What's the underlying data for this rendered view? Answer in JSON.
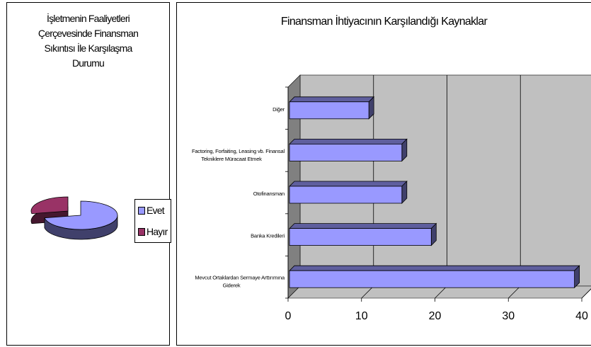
{
  "pie_chart": {
    "title_lines": [
      "İşletmenin Faaliyetleri",
      "Çerçevesinde Finansman",
      "Sıkıntısı İle Karşılaşma",
      "Durumu"
    ],
    "legend": [
      {
        "label": "Evet",
        "color": "#9999ff"
      },
      {
        "label": "Hayır",
        "color": "#993366"
      }
    ]
  },
  "chart_data": [
    {
      "type": "pie",
      "title": "İşletmenin Faaliyetleri Çerçevesinde Finansman Sıkıntısı İle Karşılaşma Durumu",
      "categories": [
        "Evet",
        "Hayır"
      ],
      "values": [
        72,
        28
      ],
      "3d": true,
      "legend_position": "right",
      "colors": {
        "Evet": "#9999ff",
        "Hayır": "#993366"
      }
    },
    {
      "type": "bar",
      "orientation": "horizontal",
      "3d": true,
      "title": "Finansman İhtiyacının Karşılandığı Kaynaklar",
      "categories": [
        "Mevcut Ortaklardan Sermaye Arttırımına Giderek",
        "Banka Kredileri",
        "Otofinansman",
        "Factoring, Forfaiting, Leasing vb. Finansal Tekniklere Müracaat Etmek",
        "Diğer"
      ],
      "category_label_lines": [
        [
          "Mevcut Ortaklardan Sermaye Arttırımına",
          "Giderek"
        ],
        [
          "Banka Kredileri"
        ],
        [
          "Otofinansman"
        ],
        [
          "Factoring, Forfaiting, Leasing vb. Finansal",
          "Tekniklere Müracaat Etmek"
        ],
        [
          "Diğer"
        ]
      ],
      "values": [
        39,
        19.5,
        15.5,
        15.5,
        11
      ],
      "xlim": [
        0,
        40
      ],
      "xticks": [
        "0",
        "10",
        "20",
        "30",
        "40"
      ],
      "gridlines": true,
      "bar_color": "#9999ff",
      "wall_color": "#c0c0c0"
    }
  ]
}
